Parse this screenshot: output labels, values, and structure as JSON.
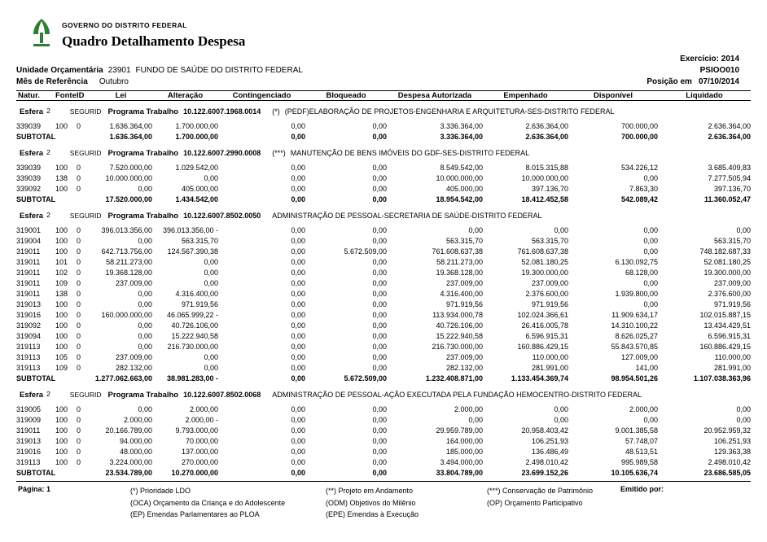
{
  "header": {
    "org_name": "GOVERNO DO DISTRITO FEDERAL",
    "report_title": "Quadro Detalhamento Despesa",
    "exercicio": "Exercício: 2014",
    "report_code": "PSIOO010",
    "unidade_label": "Unidade Orçamentária",
    "unidade_code": "23901",
    "unidade_name": "FUNDO DE SAÚDE DO DISTRITO FEDERAL",
    "mes_label": "Mês de Referência",
    "mes_value": "Outubro",
    "posicao_label": "Posição em",
    "posicao_value": "07/10/2014"
  },
  "table": {
    "columns": [
      "Natur.",
      "Fonte",
      "ID",
      "Lei",
      "Alteração",
      "Contingenciado",
      "Bloqueado",
      "Despesa Autorizada",
      "Empenhado",
      "Disponível",
      "Liquidado"
    ],
    "subtotal_label": "SUBTOTAL",
    "sections": [
      {
        "esfera_label": "Esfera",
        "esfera_value": "2",
        "group": "SEGURID",
        "programa_label": "Programa Trabalho",
        "programa_code": "10.122.6007.1968.0014",
        "marker": "(*)",
        "description": "(PEDF)ELABORAÇÃO DE PROJETOS-ENGENHARIA E ARQUITETURA-SES-DISTRITO FEDERAL",
        "rows": [
          [
            "339039",
            "100",
            "0",
            "1.636.364,00",
            "1.700.000,00",
            "0,00",
            "0,00",
            "3.336.364,00",
            "2.636.364,00",
            "700.000,00",
            "2.636.364,00"
          ]
        ],
        "subtotal": [
          "1.636.364,00",
          "1.700.000,00",
          "0,00",
          "0,00",
          "3.336.364,00",
          "2.636.364,00",
          "700.000,00",
          "2.636.364,00"
        ]
      },
      {
        "esfera_label": "Esfera",
        "esfera_value": "2",
        "group": "SEGURID",
        "programa_label": "Programa Trabalho",
        "programa_code": "10.122.6007.2990.0008",
        "marker": "(***)",
        "description": "MANUTENÇÃO DE BENS IMÓVEIS DO GDF-SES-DISTRITO FEDERAL",
        "rows": [
          [
            "339039",
            "100",
            "0",
            "7.520.000,00",
            "1.029.542,00",
            "0,00",
            "0,00",
            "8.549.542,00",
            "8.015.315,88",
            "534.226,12",
            "3.685.409,83"
          ],
          [
            "339039",
            "138",
            "0",
            "10.000.000,00",
            "0,00",
            "0,00",
            "0,00",
            "10.000.000,00",
            "10.000.000,00",
            "0,00",
            "7.277.505,94"
          ],
          [
            "339092",
            "100",
            "0",
            "0,00",
            "405.000,00",
            "0,00",
            "0,00",
            "405.000,00",
            "397.136,70",
            "7.863,30",
            "397.136,70"
          ]
        ],
        "subtotal": [
          "17.520.000,00",
          "1.434.542,00",
          "0,00",
          "0,00",
          "18.954.542,00",
          "18.412.452,58",
          "542.089,42",
          "11.360.052,47"
        ]
      },
      {
        "esfera_label": "Esfera",
        "esfera_value": "2",
        "group": "SEGURID",
        "programa_label": "Programa Trabalho",
        "programa_code": "10.122.6007.8502.0050",
        "marker": "",
        "description": "ADMINISTRAÇÃO DE PESSOAL-SECRETARIA DE SAÚDE-DISTRITO FEDERAL",
        "rows": [
          [
            "319001",
            "100",
            "0",
            "396.013.356,00",
            "396.013.356,00 -",
            "0,00",
            "0,00",
            "0,00",
            "0,00",
            "0,00",
            "0,00"
          ],
          [
            "319004",
            "100",
            "0",
            "0,00",
            "563.315,70",
            "0,00",
            "0,00",
            "563.315,70",
            "563.315,70",
            "0,00",
            "563.315,70"
          ],
          [
            "319011",
            "100",
            "0",
            "642.713.756,00",
            "124.567.390,38",
            "0,00",
            "5.672.509,00",
            "761.608.637,38",
            "761.608.637,38",
            "0,00",
            "748.182.687,33"
          ],
          [
            "319011",
            "101",
            "0",
            "58.211.273,00",
            "0,00",
            "0,00",
            "0,00",
            "58.211.273,00",
            "52.081.180,25",
            "6.130.092,75",
            "52.081.180,25"
          ],
          [
            "319011",
            "102",
            "0",
            "19.368.128,00",
            "0,00",
            "0,00",
            "0,00",
            "19.368.128,00",
            "19.300.000,00",
            "68.128,00",
            "19.300.000,00"
          ],
          [
            "319011",
            "109",
            "0",
            "237.009,00",
            "0,00",
            "0,00",
            "0,00",
            "237.009,00",
            "237.009,00",
            "0,00",
            "237.009,00"
          ],
          [
            "319011",
            "138",
            "0",
            "0,00",
            "4.316.400,00",
            "0,00",
            "0,00",
            "4.316.400,00",
            "2.376.600,00",
            "1.939.800,00",
            "2.376.600,00"
          ],
          [
            "319013",
            "100",
            "0",
            "0,00",
            "971.919,56",
            "0,00",
            "0,00",
            "971.919,56",
            "971.919,56",
            "0,00",
            "971.919,56"
          ],
          [
            "319016",
            "100",
            "0",
            "160.000.000,00",
            "46.065.999,22 -",
            "0,00",
            "0,00",
            "113.934.000,78",
            "102.024.366,61",
            "11.909.634,17",
            "102.015.887,15"
          ],
          [
            "319092",
            "100",
            "0",
            "0,00",
            "40.726.106,00",
            "0,00",
            "0,00",
            "40.726.106,00",
            "26.416.005,78",
            "14.310.100,22",
            "13.434.429,51"
          ],
          [
            "319094",
            "100",
            "0",
            "0,00",
            "15.222.940,58",
            "0,00",
            "0,00",
            "15.222.940,58",
            "6.596.915,31",
            "8.626.025,27",
            "6.596.915,31"
          ],
          [
            "319113",
            "100",
            "0",
            "0,00",
            "216.730.000,00",
            "0,00",
            "0,00",
            "216.730.000,00",
            "160.886.429,15",
            "55.843.570,85",
            "160.886.429,15"
          ],
          [
            "319113",
            "105",
            "0",
            "237.009,00",
            "0,00",
            "0,00",
            "0,00",
            "237.009,00",
            "110.000,00",
            "127.009,00",
            "110.000,00"
          ],
          [
            "319113",
            "109",
            "0",
            "282.132,00",
            "0,00",
            "0,00",
            "0,00",
            "282.132,00",
            "281.991,00",
            "141,00",
            "281.991,00"
          ]
        ],
        "subtotal": [
          "1.277.062.663,00",
          "38.981.283,00 -",
          "0,00",
          "5.672.509,00",
          "1.232.408.871,00",
          "1.133.454.369,74",
          "98.954.501,26",
          "1.107.038.363,96"
        ]
      },
      {
        "esfera_label": "Esfera",
        "esfera_value": "2",
        "group": "SEGURID",
        "programa_label": "Programa Trabalho",
        "programa_code": "10.122.6007.8502.0068",
        "marker": "",
        "description": "ADMINISTRAÇÃO DE PESSOAL-AÇÃO EXECUTADA PELA FUNDAÇÃO HEMOCENTRO-DISTRITO FEDERAL",
        "rows": [
          [
            "319005",
            "100",
            "0",
            "0,00",
            "2.000,00",
            "0,00",
            "0,00",
            "2.000,00",
            "0,00",
            "2.000,00",
            "0,00"
          ],
          [
            "319009",
            "100",
            "0",
            "2.000,00",
            "2.000,00 -",
            "0,00",
            "0,00",
            "0,00",
            "0,00",
            "0,00",
            "0,00"
          ],
          [
            "319011",
            "100",
            "0",
            "20.166.789,00",
            "9.793.000,00",
            "0,00",
            "0,00",
            "29.959.789,00",
            "20.958.403,42",
            "9.001.385,58",
            "20.952.959,32"
          ],
          [
            "319013",
            "100",
            "0",
            "94.000,00",
            "70.000,00",
            "0,00",
            "0,00",
            "164.000,00",
            "106.251,93",
            "57.748,07",
            "106.251,93"
          ],
          [
            "319016",
            "100",
            "0",
            "48.000,00",
            "137.000,00",
            "0,00",
            "0,00",
            "185.000,00",
            "136.486,49",
            "48.513,51",
            "129.363,38"
          ],
          [
            "319113",
            "100",
            "0",
            "3.224.000,00",
            "270.000,00",
            "0,00",
            "0,00",
            "3.494.000,00",
            "2.498.010,42",
            "995.989,58",
            "2.498.010,42"
          ]
        ],
        "subtotal": [
          "23.534.789,00",
          "10.270.000,00",
          "0,00",
          "0,00",
          "33.804.789,00",
          "23.699.152,26",
          "10.105.636,74",
          "23.686.585,05"
        ]
      }
    ]
  },
  "footer": {
    "page_label": "Página:",
    "page_number": "1",
    "legend_col1": [
      "(*) Prioridade LDO",
      "(OCA) Orçamento da Criança e do Adolescente",
      "(EP) Emendas Parlamentares ao PLOA"
    ],
    "legend_col2": [
      "(**) Projeto em Andamento",
      "(ODM) Objetivos do Milênio",
      "(EPE) Emendas à Execução"
    ],
    "legend_col3": [
      "(***) Conservação de Patrimônio",
      "(OP) Orçamento Participativo"
    ],
    "emitted_by_label": "Emitido por:"
  },
  "colors": {
    "logo_green": "#2e7d32",
    "text": "#000000",
    "background": "#ffffff"
  }
}
